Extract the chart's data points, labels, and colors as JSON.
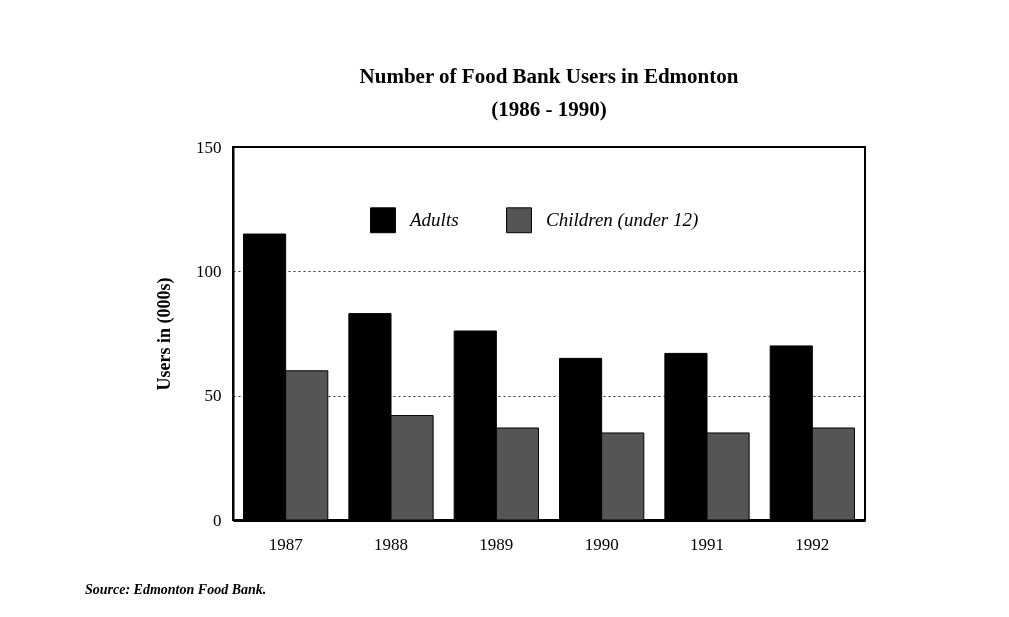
{
  "chart_data": {
    "type": "bar",
    "title": "Number of Food Bank Users in Edmonton",
    "subtitle": "(1986 - 1990)",
    "ylabel": "Users in (000s)",
    "annotations": [
      "Source: Edmonton Food Bank."
    ],
    "categories": [
      "1987",
      "1988",
      "1989",
      "1990",
      "1991",
      "1992"
    ],
    "series": [
      {
        "name": "Adults",
        "color": "#000000",
        "values": [
          115,
          83,
          76,
          65,
          67,
          70
        ]
      },
      {
        "name": "Children (under 12)",
        "color": "#555555",
        "values": [
          60,
          42,
          37,
          35,
          35,
          37
        ]
      }
    ],
    "ylim": [
      0,
      150
    ],
    "yticks": [
      0,
      50,
      100,
      150
    ],
    "grid": "y",
    "legend": "top"
  }
}
